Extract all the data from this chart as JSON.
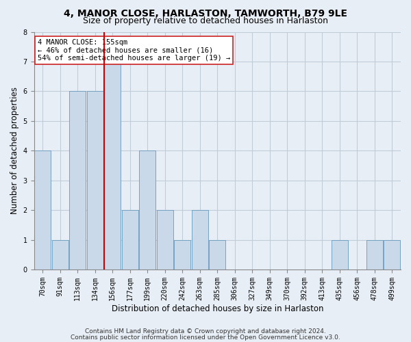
{
  "title": "4, MANOR CLOSE, HARLASTON, TAMWORTH, B79 9LE",
  "subtitle": "Size of property relative to detached houses in Harlaston",
  "xlabel": "Distribution of detached houses by size in Harlaston",
  "ylabel": "Number of detached properties",
  "bar_labels": [
    "70sqm",
    "91sqm",
    "113sqm",
    "134sqm",
    "156sqm",
    "177sqm",
    "199sqm",
    "220sqm",
    "242sqm",
    "263sqm",
    "285sqm",
    "306sqm",
    "327sqm",
    "349sqm",
    "370sqm",
    "392sqm",
    "413sqm",
    "435sqm",
    "456sqm",
    "478sqm",
    "499sqm"
  ],
  "bar_values": [
    4,
    1,
    6,
    6,
    7,
    2,
    4,
    2,
    1,
    2,
    1,
    0,
    0,
    0,
    0,
    0,
    0,
    1,
    0,
    1,
    1
  ],
  "bar_color": "#c9d9ea",
  "bar_edge_color": "#6699bb",
  "highlight_index": 4,
  "ylim": [
    0,
    8
  ],
  "yticks": [
    0,
    1,
    2,
    3,
    4,
    5,
    6,
    7,
    8
  ],
  "annotation_title": "4 MANOR CLOSE: 155sqm",
  "annotation_line1": "← 46% of detached houses are smaller (16)",
  "annotation_line2": "54% of semi-detached houses are larger (19) →",
  "footer_line1": "Contains HM Land Registry data © Crown copyright and database right 2024.",
  "footer_line2": "Contains public sector information licensed under the Open Government Licence v3.0.",
  "background_color": "#e8eef5",
  "plot_bg_color": "#e8eef5",
  "grid_color": "#c0ccd8",
  "annotation_box_color": "#ffffff",
  "annotation_box_edge": "#cc2222",
  "highlight_line_color": "#cc0000",
  "title_fontsize": 10,
  "subtitle_fontsize": 9,
  "axis_label_fontsize": 8.5,
  "tick_fontsize": 7,
  "annotation_fontsize": 7.5,
  "footer_fontsize": 6.5
}
